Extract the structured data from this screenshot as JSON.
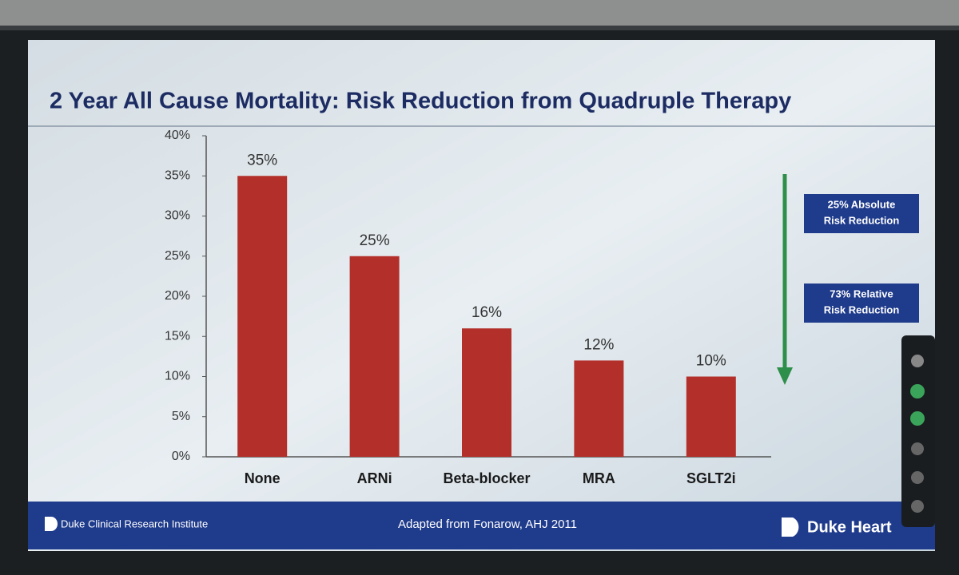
{
  "chart_data": {
    "type": "bar",
    "title": "2 Year All Cause Mortality: Risk Reduction from Quadruple Therapy",
    "categories": [
      "None",
      "ARNi",
      "Beta-blocker",
      "MRA",
      "SGLT2i"
    ],
    "values": [
      35,
      25,
      16,
      12,
      10
    ],
    "value_labels": [
      "35%",
      "25%",
      "16%",
      "12%",
      "10%"
    ],
    "color": "#b3302a",
    "ylim": [
      0,
      40
    ],
    "yticks": [
      {
        "value": 0,
        "label": "0%"
      },
      {
        "value": 5,
        "label": "5%"
      },
      {
        "value": 10,
        "label": "10%"
      },
      {
        "value": 15,
        "label": "15%"
      },
      {
        "value": 20,
        "label": "20%"
      },
      {
        "value": 25,
        "label": "25%"
      },
      {
        "value": 30,
        "label": "30%"
      },
      {
        "value": 35,
        "label": "35%"
      },
      {
        "value": 40,
        "label": "40%"
      }
    ],
    "grid": false,
    "annotations": [
      [
        "25% Absolute",
        "Risk Reduction"
      ],
      [
        "73% Relative",
        "Risk Reduction"
      ]
    ]
  },
  "footer": {
    "left": "Duke Clinical Research Institute",
    "center": "Adapted from Fonarow, AHJ 2011",
    "right": "Duke Heart"
  }
}
